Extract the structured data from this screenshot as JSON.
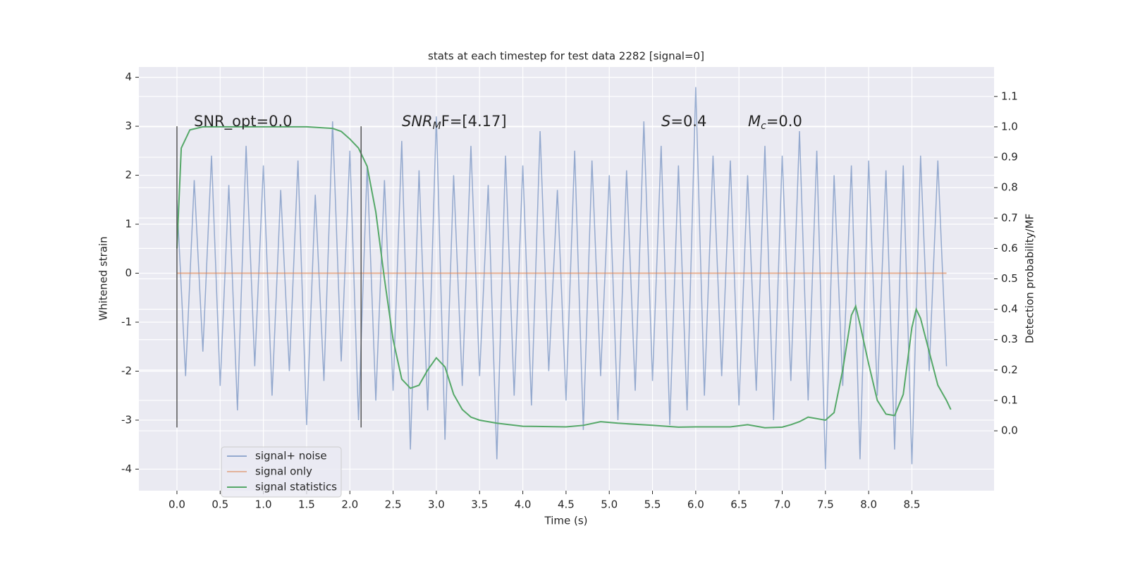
{
  "chart_data": {
    "type": "line",
    "title": "stats at each timestep for test data 2282 [signal=0]",
    "xlabel": "Time (s)",
    "ylabel": "Whitened strain",
    "y2label": "Detection probability/MF",
    "xlim": [
      -0.44,
      9.45
    ],
    "ylim": [
      -4.44,
      4.21
    ],
    "y2lim": [
      -0.197,
      1.197
    ],
    "xticks": [
      {
        "value": 0,
        "label": "0.0"
      },
      0.5,
      {
        "value": 1,
        "label": "1.0"
      },
      1.5,
      {
        "value": 2,
        "label": "2.0"
      },
      2.5,
      {
        "value": 3,
        "label": "3.0"
      },
      3.5,
      {
        "value": 4,
        "label": "4.0"
      },
      4.5,
      {
        "value": 5,
        "label": "5.0"
      },
      5.5,
      {
        "value": 6,
        "label": "6.0"
      },
      6.5,
      {
        "value": 7,
        "label": "7.0"
      },
      7.5,
      {
        "value": 8,
        "label": "8.0"
      },
      8.5
    ],
    "yticks": [
      -4,
      -3,
      -2,
      -1,
      0,
      1,
      2,
      3,
      4
    ],
    "y2ticks": [
      {
        "value": 0,
        "label": "0.0"
      },
      0.1,
      0.2,
      0.3,
      0.4,
      0.5,
      0.6,
      0.7,
      0.8,
      0.9,
      {
        "value": 1,
        "label": "1.0"
      },
      1.1
    ],
    "grid": true,
    "legend": "lower left",
    "series": [
      {
        "name": "signal+ noise",
        "color": "#4c72b0",
        "x": [
          0,
          0.1,
          0.2,
          0.3,
          0.4,
          0.5,
          0.6,
          0.7,
          0.8,
          0.9,
          1,
          1.1,
          1.2,
          1.3,
          1.4,
          1.5,
          1.6,
          1.7,
          1.8,
          1.9,
          2,
          2.1,
          2.2,
          2.3,
          2.4,
          2.5,
          2.6,
          2.7,
          2.8,
          2.9,
          3,
          3.1,
          3.2,
          3.3,
          3.4,
          3.5,
          3.6,
          3.7,
          3.8,
          3.9,
          4,
          4.1,
          4.2,
          4.3,
          4.4,
          4.5,
          4.6,
          4.7,
          4.8,
          4.9,
          5,
          5.1,
          5.2,
          5.3,
          5.4,
          5.5,
          5.6,
          5.7,
          5.8,
          5.9,
          6,
          6.1,
          6.2,
          6.3,
          6.4,
          6.5,
          6.6,
          6.7,
          6.8,
          6.9,
          7,
          7.1,
          7.2,
          7.3,
          7.4,
          7.5,
          7.6,
          7.7,
          7.8,
          7.9,
          8,
          8.1,
          8.2,
          8.3,
          8.4,
          8.5,
          8.6,
          8.7,
          8.8,
          8.9
        ],
        "values": [
          1.5,
          -2.1,
          1.9,
          -1.6,
          2.4,
          -2.3,
          1.8,
          -2.8,
          2.6,
          -1.9,
          2.2,
          -2.5,
          1.7,
          -2.0,
          2.3,
          -3.1,
          1.6,
          -2.2,
          3.1,
          -1.8,
          2.5,
          -3.0,
          2.2,
          -2.6,
          1.9,
          -2.4,
          2.7,
          -3.6,
          2.1,
          -2.8,
          3.2,
          -3.4,
          2.0,
          -2.3,
          2.6,
          -2.1,
          1.8,
          -3.8,
          2.4,
          -2.5,
          2.2,
          -2.7,
          2.9,
          -2.0,
          1.7,
          -2.6,
          2.5,
          -3.2,
          2.3,
          -2.1,
          2.0,
          -3.0,
          2.1,
          -2.4,
          3.1,
          -2.2,
          2.6,
          -3.1,
          2.2,
          -2.8,
          3.8,
          -2.5,
          2.4,
          -2.1,
          2.3,
          -2.7,
          2.0,
          -2.4,
          2.6,
          -3.0,
          2.4,
          -2.2,
          2.9,
          -2.6,
          2.5,
          -4.0,
          2.0,
          -2.3,
          2.2,
          -3.8,
          2.3,
          -2.5,
          2.1,
          -3.6,
          2.2,
          -3.9,
          2.4,
          -2.0,
          2.3,
          -1.9
        ]
      },
      {
        "name": "signal only",
        "color": "#dd8452",
        "x": [
          0,
          8.9
        ],
        "values": [
          0,
          0
        ]
      },
      {
        "name": "signal statistics",
        "color": "#55a868",
        "axis": "y2",
        "x": [
          0,
          0.05,
          0.15,
          0.3,
          1.5,
          1.8,
          1.9,
          2.0,
          2.1,
          2.2,
          2.3,
          2.4,
          2.5,
          2.6,
          2.7,
          2.8,
          2.9,
          3.0,
          3.1,
          3.2,
          3.3,
          3.4,
          3.5,
          3.7,
          4.0,
          4.5,
          4.7,
          4.9,
          5.1,
          5.5,
          5.8,
          6.0,
          6.4,
          6.6,
          6.8,
          7.0,
          7.1,
          7.2,
          7.3,
          7.5,
          7.6,
          7.7,
          7.8,
          7.85,
          7.9,
          8.0,
          8.1,
          8.2,
          8.3,
          8.4,
          8.5,
          8.55,
          8.6,
          8.7,
          8.8,
          8.9,
          8.95
        ],
        "values": [
          0.6,
          0.93,
          0.99,
          1.0,
          1.0,
          0.995,
          0.985,
          0.96,
          0.93,
          0.87,
          0.72,
          0.5,
          0.3,
          0.17,
          0.14,
          0.15,
          0.2,
          0.24,
          0.21,
          0.12,
          0.07,
          0.045,
          0.035,
          0.025,
          0.015,
          0.013,
          0.018,
          0.03,
          0.025,
          0.018,
          0.012,
          0.013,
          0.013,
          0.02,
          0.01,
          0.012,
          0.02,
          0.03,
          0.045,
          0.035,
          0.06,
          0.2,
          0.38,
          0.41,
          0.35,
          0.22,
          0.1,
          0.055,
          0.05,
          0.12,
          0.34,
          0.4,
          0.37,
          0.26,
          0.15,
          0.1,
          0.07
        ]
      }
    ],
    "vlines": [
      0,
      2.13
    ],
    "vline_range": [
      -3.15,
      3
    ],
    "annotations": [
      {
        "text": "SNR_opt=0.0"
      },
      {
        "italic": "SNR",
        "sub": "M",
        "text": "F=[4.17]"
      },
      {
        "italic": "S",
        "text": "=0.4"
      },
      {
        "italic": "M",
        "sub": "c",
        "text": "=0.0"
      }
    ]
  }
}
